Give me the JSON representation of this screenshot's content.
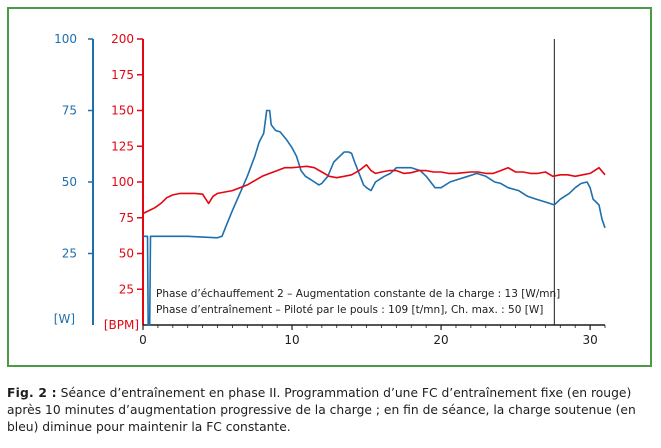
{
  "chart_data": {
    "type": "line",
    "title": "",
    "xlim": [
      0,
      31
    ],
    "x_ticks": [
      "0",
      "10",
      "20",
      "30"
    ],
    "left_axis": {
      "unit_label": "[W]",
      "ylim": [
        0,
        100
      ],
      "ticks": [
        "25",
        "50",
        "75",
        "100"
      ],
      "color": "#1d6fae"
    },
    "right_axis": {
      "unit_label": "[BPM]",
      "ylim": [
        0,
        200
      ],
      "ticks": [
        "25",
        "50",
        "75",
        "100",
        "125",
        "150",
        "175",
        "200"
      ],
      "color": "#e30613"
    },
    "series": [
      {
        "axis": "left",
        "color": "#1d6fae",
        "points": [
          [
            0,
            31
          ],
          [
            0.3,
            31
          ],
          [
            0.35,
            0
          ],
          [
            0.45,
            0
          ],
          [
            0.5,
            31
          ],
          [
            1,
            31
          ],
          [
            3,
            31
          ],
          [
            5,
            30.5
          ],
          [
            5.3,
            31
          ],
          [
            5.6,
            35
          ],
          [
            6,
            40
          ],
          [
            6.5,
            46
          ],
          [
            7,
            52
          ],
          [
            7.5,
            59
          ],
          [
            7.8,
            64
          ],
          [
            8.1,
            67
          ],
          [
            8.3,
            75
          ],
          [
            8.5,
            75
          ],
          [
            8.6,
            70
          ],
          [
            8.9,
            68
          ],
          [
            9.2,
            67.5
          ],
          [
            9.6,
            65
          ],
          [
            10,
            62
          ],
          [
            10.3,
            59
          ],
          [
            10.6,
            54
          ],
          [
            10.9,
            52
          ],
          [
            11.2,
            51
          ],
          [
            11.5,
            50
          ],
          [
            11.8,
            49
          ],
          [
            12,
            49.5
          ],
          [
            12.4,
            52
          ],
          [
            12.8,
            57
          ],
          [
            13.2,
            59
          ],
          [
            13.5,
            60.5
          ],
          [
            13.8,
            60.5
          ],
          [
            14,
            60
          ],
          [
            14.2,
            57
          ],
          [
            14.5,
            53
          ],
          [
            14.8,
            49
          ],
          [
            15,
            48
          ],
          [
            15.3,
            47
          ],
          [
            15.6,
            50
          ],
          [
            15.9,
            51
          ],
          [
            16.2,
            52
          ],
          [
            16.6,
            53
          ],
          [
            17,
            55
          ],
          [
            18,
            55
          ],
          [
            18.6,
            54
          ],
          [
            19,
            52
          ],
          [
            19.3,
            50
          ],
          [
            19.6,
            48
          ],
          [
            20,
            48
          ],
          [
            20.6,
            50
          ],
          [
            21.2,
            51
          ],
          [
            21.8,
            52
          ],
          [
            22.4,
            53
          ],
          [
            23,
            52
          ],
          [
            23.6,
            50
          ],
          [
            24,
            49.5
          ],
          [
            24.5,
            48
          ],
          [
            25.2,
            47
          ],
          [
            25.8,
            45
          ],
          [
            26.4,
            44
          ],
          [
            27,
            43
          ],
          [
            27.6,
            42
          ],
          [
            28,
            44
          ],
          [
            28.6,
            46
          ],
          [
            29,
            48
          ],
          [
            29.4,
            49.5
          ],
          [
            29.8,
            50
          ],
          [
            30,
            48
          ],
          [
            30.2,
            44
          ],
          [
            30.4,
            43
          ],
          [
            30.6,
            42
          ],
          [
            30.8,
            37
          ],
          [
            31,
            34
          ]
        ]
      },
      {
        "axis": "right",
        "color": "#e30613",
        "points": [
          [
            0,
            78
          ],
          [
            0.4,
            80
          ],
          [
            0.8,
            82
          ],
          [
            1.2,
            85
          ],
          [
            1.6,
            89
          ],
          [
            2,
            91
          ],
          [
            2.5,
            92
          ],
          [
            3,
            92
          ],
          [
            3.5,
            92
          ],
          [
            4,
            91.5
          ],
          [
            4.4,
            85
          ],
          [
            4.7,
            90
          ],
          [
            5,
            92
          ],
          [
            5.5,
            93
          ],
          [
            6,
            94
          ],
          [
            6.5,
            96
          ],
          [
            7,
            98
          ],
          [
            7.5,
            101
          ],
          [
            8,
            104
          ],
          [
            8.5,
            106
          ],
          [
            9,
            108
          ],
          [
            9.5,
            110
          ],
          [
            10,
            110
          ],
          [
            10.5,
            110.5
          ],
          [
            11,
            111
          ],
          [
            11.5,
            110
          ],
          [
            12,
            107
          ],
          [
            12.5,
            104
          ],
          [
            13,
            103
          ],
          [
            13.5,
            104
          ],
          [
            14,
            105
          ],
          [
            14.5,
            108
          ],
          [
            15,
            112
          ],
          [
            15.3,
            108
          ],
          [
            15.6,
            106
          ],
          [
            16,
            107
          ],
          [
            16.5,
            108
          ],
          [
            17,
            108
          ],
          [
            17.5,
            106
          ],
          [
            18,
            106.5
          ],
          [
            18.5,
            108
          ],
          [
            19,
            108
          ],
          [
            19.5,
            107
          ],
          [
            20,
            107
          ],
          [
            20.5,
            106
          ],
          [
            21,
            106
          ],
          [
            21.5,
            106.5
          ],
          [
            22,
            107
          ],
          [
            22.5,
            107
          ],
          [
            23,
            106
          ],
          [
            23.5,
            106
          ],
          [
            24,
            108
          ],
          [
            24.5,
            110
          ],
          [
            25,
            107
          ],
          [
            25.5,
            107
          ],
          [
            26,
            106
          ],
          [
            26.5,
            106
          ],
          [
            27,
            107
          ],
          [
            27.5,
            104
          ],
          [
            28,
            105
          ],
          [
            28.5,
            105
          ],
          [
            29,
            104
          ],
          [
            29.5,
            105
          ],
          [
            30,
            106
          ],
          [
            30.3,
            108
          ],
          [
            30.6,
            110
          ],
          [
            31,
            105
          ]
        ]
      }
    ],
    "vline_x": 27.6,
    "annotations": [
      "Phase d’échauffement 2 – Augmentation constante de la charge : 13 [W/mn]",
      "Phase d’entraînement – Piloté par le pouls : 109 [t/mn], Ch. max. : 50 [W]"
    ]
  },
  "caption": {
    "label": "Fig. 2 :",
    "text": "Séance d’entraînement en phase II. Programmation d’une FC d’entraînement fixe (en rouge) après 10 minutes d’augmentation progressive de la charge ; en fin de séance, la charge soutenue (en bleu) diminue pour maintenir la FC constante."
  }
}
